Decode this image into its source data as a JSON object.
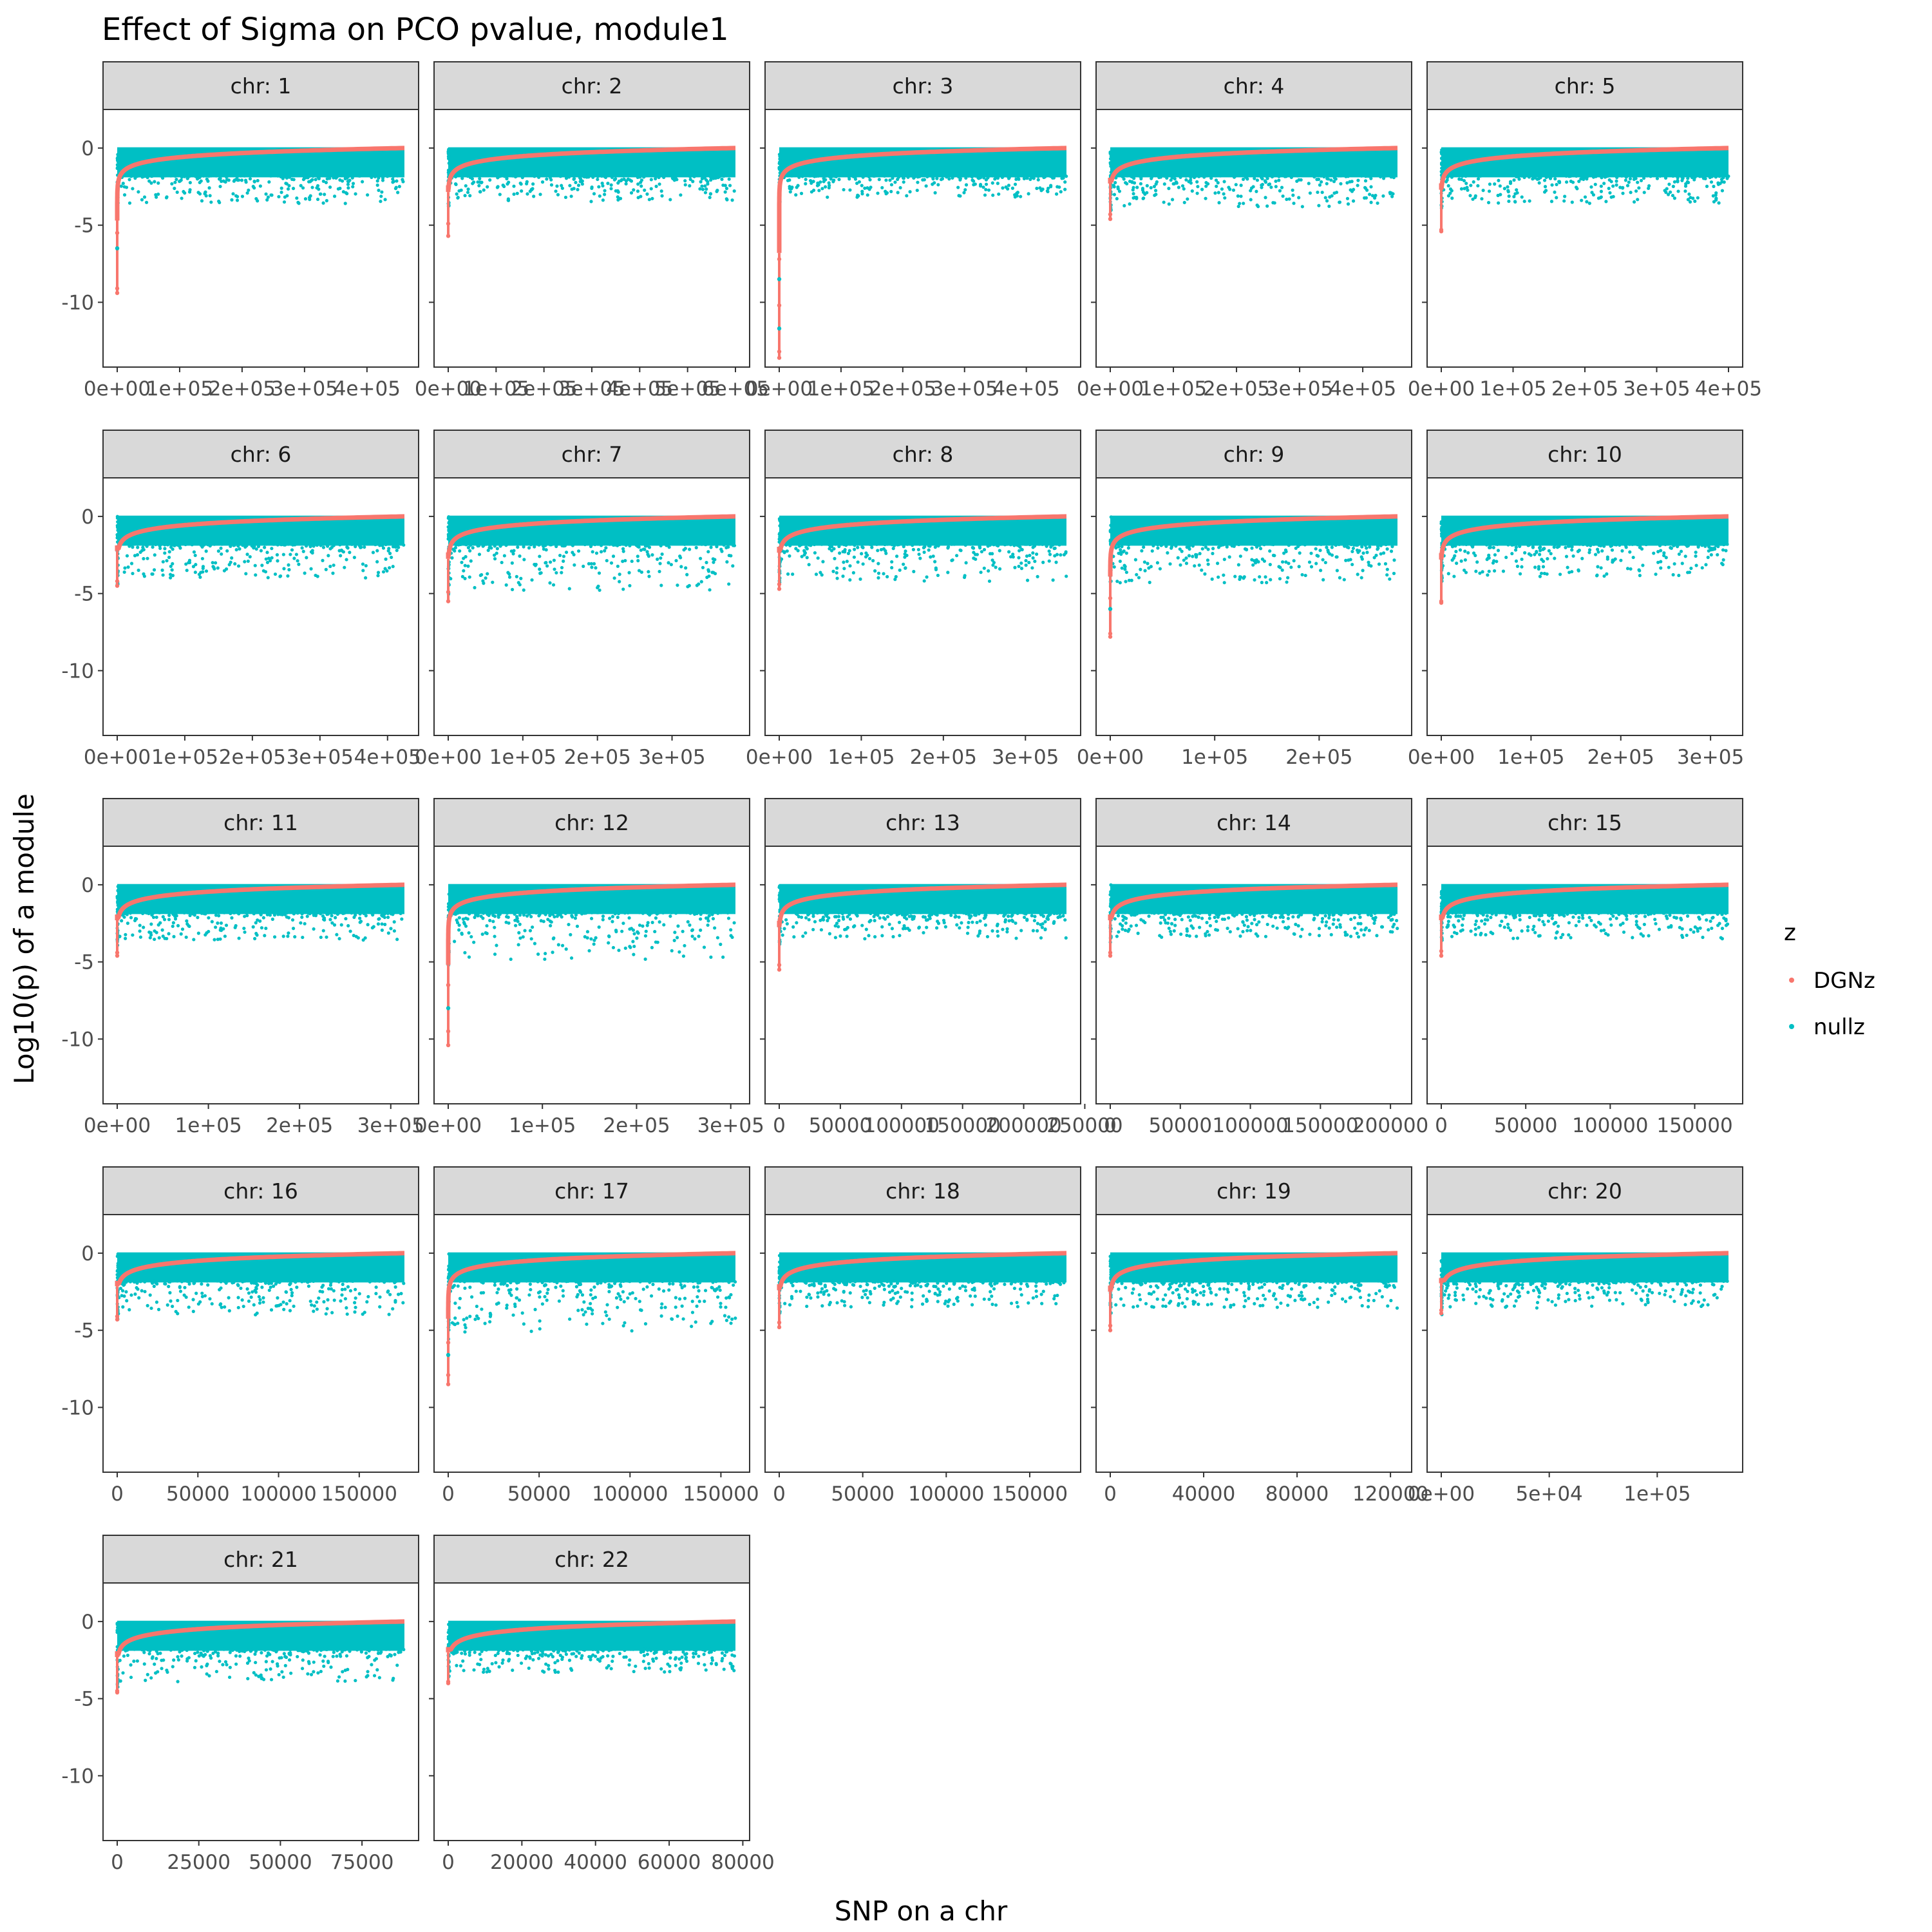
{
  "chart_data": {
    "type": "scatter",
    "title": "Effect of Sigma on PCO pvalue, module1",
    "xlabel": "SNP on a chr",
    "ylabel": "Log10(p) of a module",
    "ylim": [
      -14.2,
      2.5
    ],
    "y_ticks": [
      0,
      -5,
      -10
    ],
    "y_tick_labels": [
      "0",
      "-5",
      "-10"
    ],
    "legend": {
      "title": "z",
      "position": "right",
      "entries": [
        {
          "label": "DGNz",
          "color": "#F8766D"
        },
        {
          "label": "nullz",
          "color": "#00BFC4"
        }
      ]
    },
    "panels": [
      {
        "label": "chr: 1",
        "xmax": 460000,
        "xticks": [
          0,
          100000,
          200000,
          300000,
          400000
        ],
        "xtick_labels": [
          "0e+00",
          "1e+05",
          "2e+05",
          "3e+05",
          "4e+05"
        ],
        "dgn_min": -9.4,
        "null_floor": -3.6,
        "outliers": [
          -9.1,
          -6.5,
          -5.5
        ]
      },
      {
        "label": "chr: 2",
        "xmax": 600000,
        "xticks": [
          0,
          100000,
          200000,
          300000,
          400000,
          500000,
          600000
        ],
        "xtick_labels": [
          "0e+00",
          "1e+05",
          "2e+05",
          "3e+05",
          "4e+05",
          "5e+05",
          "6e+05"
        ],
        "dgn_min": -5.7,
        "null_floor": -3.5,
        "outliers": [
          -4.9
        ]
      },
      {
        "label": "chr: 3",
        "xmax": 465000,
        "xticks": [
          0,
          100000,
          200000,
          300000,
          400000
        ],
        "xtick_labels": [
          "0e+00",
          "1e+05",
          "2e+05",
          "3e+05",
          "4e+05"
        ],
        "dgn_min": -13.6,
        "null_floor": -3.2,
        "outliers": [
          -13.2,
          -11.7,
          -10.2,
          -8.5,
          -7.2
        ]
      },
      {
        "label": "chr: 4",
        "xmax": 455000,
        "xticks": [
          0,
          100000,
          200000,
          300000,
          400000
        ],
        "xtick_labels": [
          "0e+00",
          "1e+05",
          "2e+05",
          "3e+05",
          "4e+05"
        ],
        "dgn_min": -4.6,
        "null_floor": -3.8,
        "outliers": [
          -4.3
        ]
      },
      {
        "label": "chr: 5",
        "xmax": 400000,
        "xticks": [
          0,
          100000,
          200000,
          300000,
          400000
        ],
        "xtick_labels": [
          "0e+00",
          "1e+05",
          "2e+05",
          "3e+05",
          "4e+05"
        ],
        "dgn_min": -5.4,
        "null_floor": -3.6,
        "outliers": [
          -5.3
        ]
      },
      {
        "label": "chr: 6",
        "xmax": 425000,
        "xticks": [
          0,
          100000,
          200000,
          300000,
          400000
        ],
        "xtick_labels": [
          "0e+00",
          "1e+05",
          "2e+05",
          "3e+05",
          "4e+05"
        ],
        "dgn_min": -4.5,
        "null_floor": -4.0,
        "outliers": [
          -4.2
        ]
      },
      {
        "label": "chr: 7",
        "xmax": 385000,
        "xticks": [
          0,
          100000,
          200000,
          300000
        ],
        "xtick_labels": [
          "0e+00",
          "1e+05",
          "2e+05",
          "3e+05"
        ],
        "dgn_min": -5.5,
        "null_floor": -4.8,
        "outliers": [
          -4.9
        ]
      },
      {
        "label": "chr: 8",
        "xmax": 350000,
        "xticks": [
          0,
          100000,
          200000,
          300000
        ],
        "xtick_labels": [
          "0e+00",
          "1e+05",
          "2e+05",
          "3e+05"
        ],
        "dgn_min": -4.7,
        "null_floor": -4.2,
        "outliers": [
          -4.4
        ]
      },
      {
        "label": "chr: 9",
        "xmax": 275000,
        "xticks": [
          0,
          100000,
          200000
        ],
        "xtick_labels": [
          "0e+00",
          "1e+05",
          "2e+05"
        ],
        "dgn_min": -7.8,
        "null_floor": -4.3,
        "outliers": [
          -7.6,
          -6.0,
          -5.3
        ]
      },
      {
        "label": "chr: 10",
        "xmax": 320000,
        "xticks": [
          0,
          100000,
          200000,
          300000
        ],
        "xtick_labels": [
          "0e+00",
          "1e+05",
          "2e+05",
          "3e+05"
        ],
        "dgn_min": -5.6,
        "null_floor": -3.9,
        "outliers": [
          -5.5
        ]
      },
      {
        "label": "chr: 11",
        "xmax": 315000,
        "xticks": [
          0,
          100000,
          200000,
          300000
        ],
        "xtick_labels": [
          "0e+00",
          "1e+05",
          "2e+05",
          "3e+05"
        ],
        "dgn_min": -4.6,
        "null_floor": -3.6,
        "outliers": [
          -4.4
        ]
      },
      {
        "label": "chr: 12",
        "xmax": 305000,
        "xticks": [
          0,
          100000,
          200000,
          300000
        ],
        "xtick_labels": [
          "0e+00",
          "1e+05",
          "2e+05",
          "3e+05"
        ],
        "dgn_min": -10.4,
        "null_floor": -4.9,
        "outliers": [
          -9.5,
          -8.0,
          -6.5
        ]
      },
      {
        "label": "chr: 13",
        "xmax": 235000,
        "xticks": [
          0,
          50000,
          100000,
          150000,
          200000,
          250000
        ],
        "xtick_labels": [
          "0",
          "50000",
          "100000",
          "150000",
          "200000",
          "250000"
        ],
        "dgn_min": -5.5,
        "null_floor": -3.5,
        "outliers": [
          -5.2
        ]
      },
      {
        "label": "chr: 14",
        "xmax": 205000,
        "xticks": [
          0,
          50000,
          100000,
          150000,
          200000
        ],
        "xtick_labels": [
          "0",
          "50000",
          "100000",
          "150000",
          "200000"
        ],
        "dgn_min": -4.6,
        "null_floor": -3.4,
        "outliers": [
          -4.4
        ]
      },
      {
        "label": "chr: 15",
        "xmax": 170000,
        "xticks": [
          0,
          50000,
          100000,
          150000
        ],
        "xtick_labels": [
          "0",
          "50000",
          "100000",
          "150000"
        ],
        "dgn_min": -4.6,
        "null_floor": -3.5,
        "outliers": [
          -4.3
        ]
      },
      {
        "label": "chr: 16",
        "xmax": 178000,
        "xticks": [
          0,
          50000,
          100000,
          150000
        ],
        "xtick_labels": [
          "0",
          "50000",
          "100000",
          "150000"
        ],
        "dgn_min": -4.3,
        "null_floor": -4.0,
        "outliers": [
          -4.1
        ]
      },
      {
        "label": "chr: 17",
        "xmax": 158000,
        "xticks": [
          0,
          50000,
          100000,
          150000
        ],
        "xtick_labels": [
          "0",
          "50000",
          "100000",
          "150000"
        ],
        "dgn_min": -8.5,
        "null_floor": -5.2,
        "outliers": [
          -7.9,
          -6.6,
          -5.8
        ]
      },
      {
        "label": "chr: 18",
        "xmax": 172000,
        "xticks": [
          0,
          50000,
          100000,
          150000
        ],
        "xtick_labels": [
          "0",
          "50000",
          "100000",
          "150000"
        ],
        "dgn_min": -4.8,
        "null_floor": -3.5,
        "outliers": [
          -4.5
        ]
      },
      {
        "label": "chr: 19",
        "xmax": 123000,
        "xticks": [
          0,
          40000,
          80000,
          120000
        ],
        "xtick_labels": [
          "0",
          "40000",
          "80000",
          "120000"
        ],
        "dgn_min": -5.0,
        "null_floor": -3.6,
        "outliers": [
          -4.7
        ]
      },
      {
        "label": "chr: 20",
        "xmax": 133000,
        "xticks": [
          0,
          50000,
          100000
        ],
        "xtick_labels": [
          "0e+00",
          "5e+04",
          "1e+05"
        ],
        "dgn_min": -3.9,
        "null_floor": -3.6,
        "outliers": [
          -3.7
        ]
      },
      {
        "label": "chr: 21",
        "xmax": 88000,
        "xticks": [
          0,
          25000,
          50000,
          75000
        ],
        "xtick_labels": [
          "0",
          "25000",
          "50000",
          "75000"
        ],
        "dgn_min": -4.6,
        "null_floor": -3.9,
        "outliers": [
          -4.5
        ]
      },
      {
        "label": "chr: 22",
        "xmax": 78000,
        "xticks": [
          0,
          20000,
          40000,
          60000,
          80000
        ],
        "xtick_labels": [
          "0",
          "20000",
          "40000",
          "60000",
          "80000"
        ],
        "dgn_min": -4.0,
        "null_floor": -3.3,
        "outliers": [
          -3.9
        ]
      }
    ]
  }
}
